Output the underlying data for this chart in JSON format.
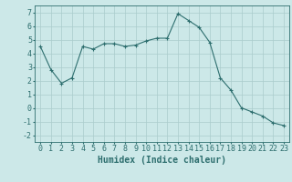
{
  "x": [
    0,
    1,
    2,
    3,
    4,
    5,
    6,
    7,
    8,
    9,
    10,
    11,
    12,
    13,
    14,
    15,
    16,
    17,
    18,
    19,
    20,
    21,
    22,
    23
  ],
  "y": [
    4.5,
    2.8,
    1.8,
    2.2,
    4.5,
    4.3,
    4.7,
    4.7,
    4.5,
    4.6,
    4.9,
    5.1,
    5.1,
    6.9,
    6.4,
    5.9,
    4.8,
    2.2,
    1.3,
    0.0,
    -0.3,
    -0.6,
    -1.1,
    -1.3
  ],
  "line_color": "#2d6e6e",
  "marker": "+",
  "bg_color": "#cce8e8",
  "grid_color": "#aacccc",
  "xlabel": "Humidex (Indice chaleur)",
  "ylabel": "",
  "ylim": [
    -2.5,
    7.5
  ],
  "xlim": [
    -0.5,
    23.5
  ],
  "yticks": [
    -2,
    -1,
    0,
    1,
    2,
    3,
    4,
    5,
    6,
    7
  ],
  "xticks": [
    0,
    1,
    2,
    3,
    4,
    5,
    6,
    7,
    8,
    9,
    10,
    11,
    12,
    13,
    14,
    15,
    16,
    17,
    18,
    19,
    20,
    21,
    22,
    23
  ],
  "font_color": "#2d6e6e",
  "fontsize_label": 7,
  "fontsize_tick": 6
}
